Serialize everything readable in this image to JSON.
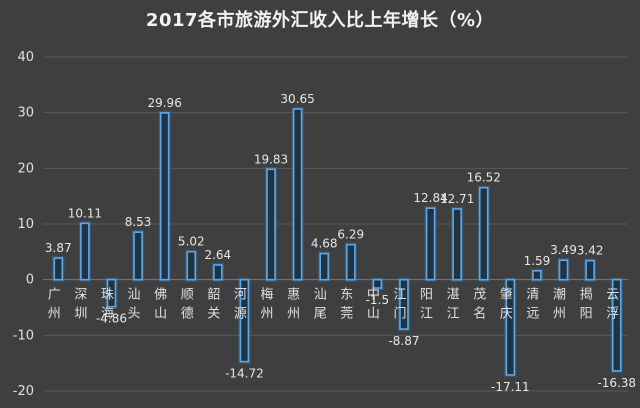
{
  "chart_data": {
    "type": "bar",
    "title": "2017各市旅游外汇收入比上年增长（%）",
    "categories": [
      "广州",
      "深圳",
      "珠海",
      "汕头",
      "佛山",
      "顺德",
      "韶关",
      "河源",
      "梅州",
      "惠州",
      "汕尾",
      "东莞",
      "中山",
      "江门",
      "阳江",
      "湛江",
      "茂名",
      "肇庆",
      "清远",
      "潮州",
      "揭阳",
      "云浮"
    ],
    "values": [
      3.87,
      10.11,
      -4.86,
      8.53,
      29.96,
      5.02,
      2.64,
      -14.72,
      19.83,
      30.65,
      4.68,
      6.29,
      -1.5,
      -8.87,
      12.84,
      12.71,
      16.52,
      -17.11,
      1.59,
      3.49,
      3.42,
      -16.38
    ],
    "data_labels": [
      "3.87",
      "10.11",
      "-4.86",
      "8.53",
      "29.96",
      "5.02",
      "2.64",
      "-14.72",
      "19.83",
      "30.65",
      "4.68",
      "6.29",
      "-1.5",
      "-8.87",
      "12.84",
      "12.71",
      "16.52",
      "-17.11",
      "1.59",
      "3.49",
      "3.42",
      "-16.38"
    ],
    "yticks": [
      "40",
      "30",
      "20",
      "10",
      "0",
      "-10",
      "-20"
    ],
    "ylim": [
      -20,
      40
    ],
    "xlabel": "",
    "ylabel": "",
    "grid": true,
    "legend": "none",
    "colors": {
      "background": "#3f3f3f",
      "bar_fill": "#22333f",
      "bar_stroke": "#5ba8e8",
      "text": "#e0e0e0"
    }
  }
}
